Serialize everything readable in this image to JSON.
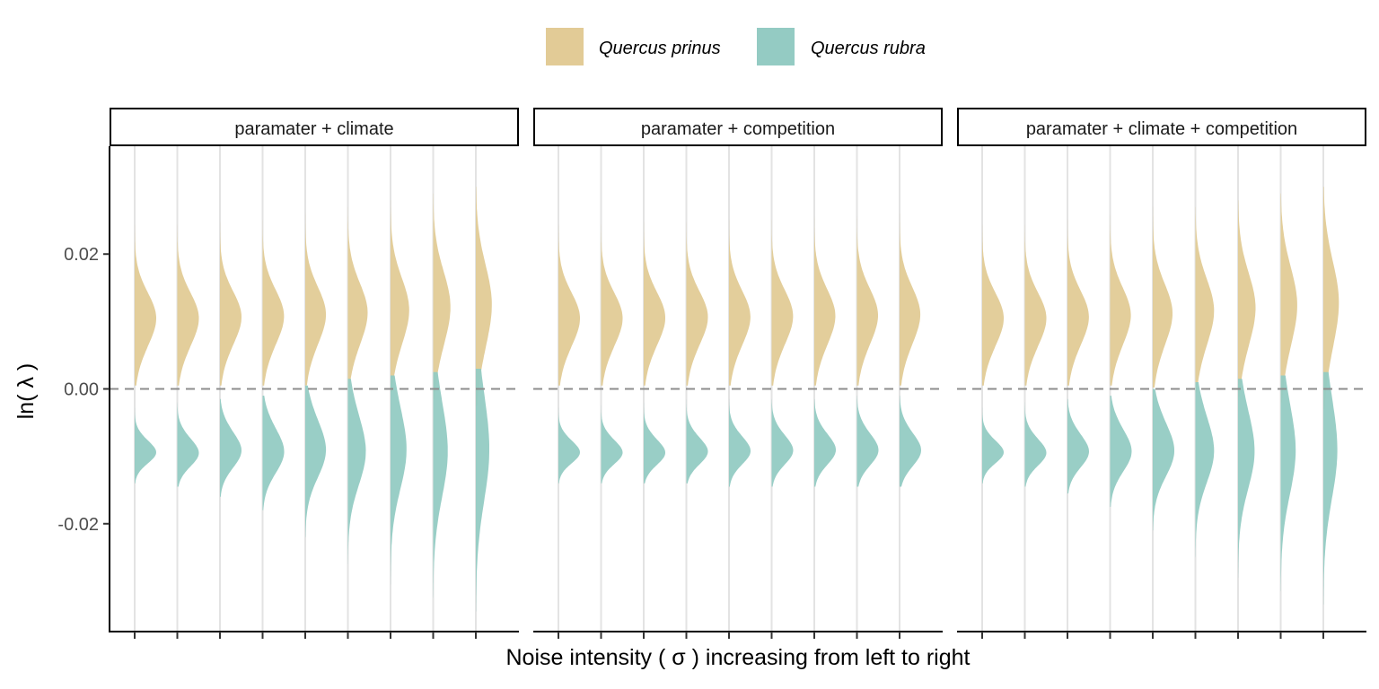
{
  "chart_data": {
    "type": "violin",
    "title": "",
    "xlabel": "Noise intensity ( σ ) increasing from left to right",
    "ylabel": "ln( λ )",
    "ylim": [
      -0.036,
      0.036
    ],
    "yticks": [
      0.02,
      0.0,
      -0.02
    ],
    "ytick_labels": [
      "0.02",
      "0.00",
      "-0.02"
    ],
    "reference_line": {
      "y": 0,
      "style": "dashed"
    },
    "legend": {
      "position": "top"
    },
    "n_noise_levels": 9,
    "series": [
      {
        "name": "Quercus prinus",
        "color": "#e2cb96"
      },
      {
        "name": "Quercus rubra",
        "color": "#94cbc3"
      }
    ],
    "panels": [
      {
        "title": "paramater + climate",
        "distributions": {
          "Quercus prinus": [
            {
              "mean": 0.0095,
              "sd": 0.0042,
              "max": 0.026,
              "min": 0.0005
            },
            {
              "mean": 0.0095,
              "sd": 0.0042,
              "max": 0.026,
              "min": 0.0005
            },
            {
              "mean": 0.0097,
              "sd": 0.0042,
              "max": 0.026,
              "min": 0.0005
            },
            {
              "mean": 0.0098,
              "sd": 0.0043,
              "max": 0.026,
              "min": 0.0005
            },
            {
              "mean": 0.01,
              "sd": 0.0045,
              "max": 0.027,
              "min": 0.0005
            },
            {
              "mean": 0.0102,
              "sd": 0.0048,
              "max": 0.027,
              "min": 0.0002
            },
            {
              "mean": 0.0105,
              "sd": 0.0052,
              "max": 0.028,
              "min": -0.0005
            },
            {
              "mean": 0.0108,
              "sd": 0.0058,
              "max": 0.029,
              "min": -0.0015
            },
            {
              "mean": 0.011,
              "sd": 0.0065,
              "max": 0.03,
              "min": -0.0025
            }
          ],
          "Quercus rubra": [
            {
              "mean": -0.009,
              "sd": 0.0018,
              "max": -0.002,
              "min": -0.014
            },
            {
              "mean": -0.009,
              "sd": 0.0022,
              "max": -0.002,
              "min": -0.0145
            },
            {
              "mean": -0.0085,
              "sd": 0.0028,
              "max": -0.0015,
              "min": -0.016
            },
            {
              "mean": -0.0085,
              "sd": 0.0035,
              "max": -0.001,
              "min": -0.018
            },
            {
              "mean": -0.008,
              "sd": 0.0045,
              "max": 0.0005,
              "min": -0.022
            },
            {
              "mean": -0.008,
              "sd": 0.0055,
              "max": 0.0015,
              "min": -0.026
            },
            {
              "mean": -0.0075,
              "sd": 0.0065,
              "max": 0.002,
              "min": -0.029
            },
            {
              "mean": -0.0075,
              "sd": 0.0075,
              "max": 0.0025,
              "min": -0.031
            },
            {
              "mean": -0.007,
              "sd": 0.0085,
              "max": 0.003,
              "min": -0.033
            }
          ]
        }
      },
      {
        "title": "paramater + competition",
        "distributions": {
          "Quercus prinus": [
            {
              "mean": 0.0095,
              "sd": 0.0042,
              "max": 0.026,
              "min": 0.0005
            },
            {
              "mean": 0.0095,
              "sd": 0.0042,
              "max": 0.026,
              "min": 0.0005
            },
            {
              "mean": 0.0096,
              "sd": 0.0042,
              "max": 0.026,
              "min": 0.0005
            },
            {
              "mean": 0.0097,
              "sd": 0.0042,
              "max": 0.026,
              "min": 0.0005
            },
            {
              "mean": 0.0097,
              "sd": 0.0043,
              "max": 0.026,
              "min": 0.0005
            },
            {
              "mean": 0.0098,
              "sd": 0.0043,
              "max": 0.026,
              "min": 0.0005
            },
            {
              "mean": 0.0098,
              "sd": 0.0044,
              "max": 0.026,
              "min": 0.0005
            },
            {
              "mean": 0.0099,
              "sd": 0.0044,
              "max": 0.026,
              "min": 0.0005
            },
            {
              "mean": 0.01,
              "sd": 0.0045,
              "max": 0.026,
              "min": 0.0005
            }
          ],
          "Quercus rubra": [
            {
              "mean": -0.009,
              "sd": 0.0018,
              "max": -0.002,
              "min": -0.014
            },
            {
              "mean": -0.009,
              "sd": 0.0019,
              "max": -0.002,
              "min": -0.014
            },
            {
              "mean": -0.009,
              "sd": 0.002,
              "max": -0.002,
              "min": -0.014
            },
            {
              "mean": -0.0088,
              "sd": 0.0021,
              "max": -0.0015,
              "min": -0.014
            },
            {
              "mean": -0.0087,
              "sd": 0.0022,
              "max": -0.0015,
              "min": -0.0145
            },
            {
              "mean": -0.0086,
              "sd": 0.0023,
              "max": -0.0015,
              "min": -0.0145
            },
            {
              "mean": -0.0085,
              "sd": 0.0024,
              "max": -0.0015,
              "min": -0.0145
            },
            {
              "mean": -0.0085,
              "sd": 0.0025,
              "max": -0.001,
              "min": -0.0145
            },
            {
              "mean": -0.0085,
              "sd": 0.0026,
              "max": -0.001,
              "min": -0.0145
            }
          ]
        }
      },
      {
        "title": "paramater + climate + competition",
        "distributions": {
          "Quercus prinus": [
            {
              "mean": 0.0095,
              "sd": 0.0042,
              "max": 0.026,
              "min": 0.0005
            },
            {
              "mean": 0.0095,
              "sd": 0.0042,
              "max": 0.026,
              "min": 0.0005
            },
            {
              "mean": 0.0097,
              "sd": 0.0043,
              "max": 0.026,
              "min": 0.0005
            },
            {
              "mean": 0.0099,
              "sd": 0.0045,
              "max": 0.026,
              "min": 0.0005
            },
            {
              "mean": 0.0101,
              "sd": 0.0048,
              "max": 0.027,
              "min": 0.0002
            },
            {
              "mean": 0.0104,
              "sd": 0.0052,
              "max": 0.027,
              "min": -0.0005
            },
            {
              "mean": 0.0107,
              "sd": 0.0057,
              "max": 0.028,
              "min": -0.0012
            },
            {
              "mean": 0.011,
              "sd": 0.0062,
              "max": 0.029,
              "min": -0.002
            },
            {
              "mean": 0.0112,
              "sd": 0.0068,
              "max": 0.03,
              "min": -0.003
            }
          ],
          "Quercus rubra": [
            {
              "mean": -0.009,
              "sd": 0.0018,
              "max": -0.002,
              "min": -0.014
            },
            {
              "mean": -0.009,
              "sd": 0.0021,
              "max": -0.002,
              "min": -0.0145
            },
            {
              "mean": -0.0087,
              "sd": 0.0026,
              "max": -0.0015,
              "min": -0.0155
            },
            {
              "mean": -0.0085,
              "sd": 0.0033,
              "max": -0.001,
              "min": -0.0175
            },
            {
              "mean": -0.0082,
              "sd": 0.0042,
              "max": 0.0,
              "min": -0.021
            },
            {
              "mean": -0.008,
              "sd": 0.0052,
              "max": 0.001,
              "min": -0.025
            },
            {
              "mean": -0.0078,
              "sd": 0.0062,
              "max": 0.0015,
              "min": -0.028
            },
            {
              "mean": -0.0075,
              "sd": 0.0072,
              "max": 0.002,
              "min": -0.03
            },
            {
              "mean": -0.0072,
              "sd": 0.008,
              "max": 0.0025,
              "min": -0.032
            }
          ]
        }
      }
    ]
  }
}
